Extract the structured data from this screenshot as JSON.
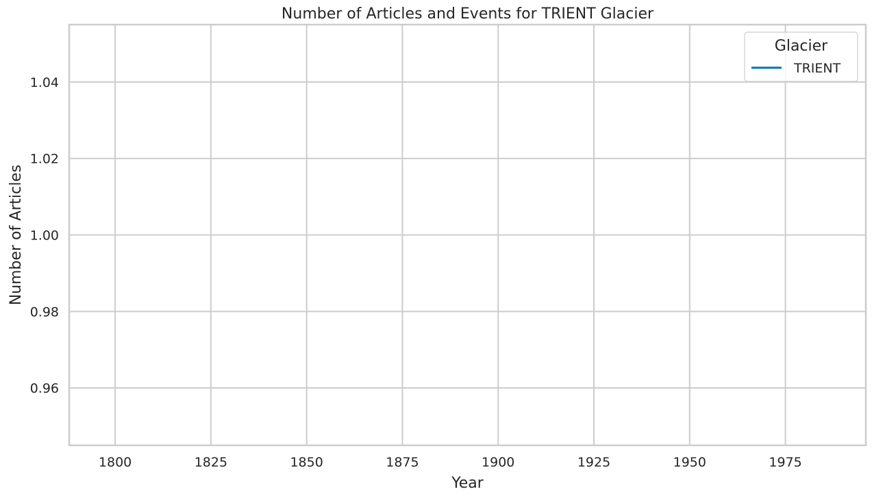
{
  "chart_data": {
    "type": "line",
    "title": "Number of Articles and Events for TRIENT Glacier",
    "xlabel": "Year",
    "ylabel": "Number of Articles",
    "xlim": [
      1788,
      1996
    ],
    "ylim": [
      0.945,
      1.055
    ],
    "x_ticks": [
      1800,
      1825,
      1850,
      1875,
      1900,
      1925,
      1950,
      1975
    ],
    "y_ticks": [
      0.96,
      0.98,
      1.0,
      1.02,
      1.04
    ],
    "x_tick_labels": [
      "1800",
      "1825",
      "1850",
      "1875",
      "1900",
      "1925",
      "1950",
      "1975"
    ],
    "y_tick_labels": [
      "0.96",
      "0.98",
      "1.00",
      "1.02",
      "1.04"
    ],
    "grid": true,
    "legend": {
      "title": "Glacier",
      "placement": "top-right",
      "entries": [
        {
          "name": "TRIENT",
          "color": "#0173b2"
        }
      ]
    },
    "series": [
      {
        "name": "TRIENT",
        "color": "#0173b2",
        "x": [],
        "y": []
      }
    ]
  }
}
